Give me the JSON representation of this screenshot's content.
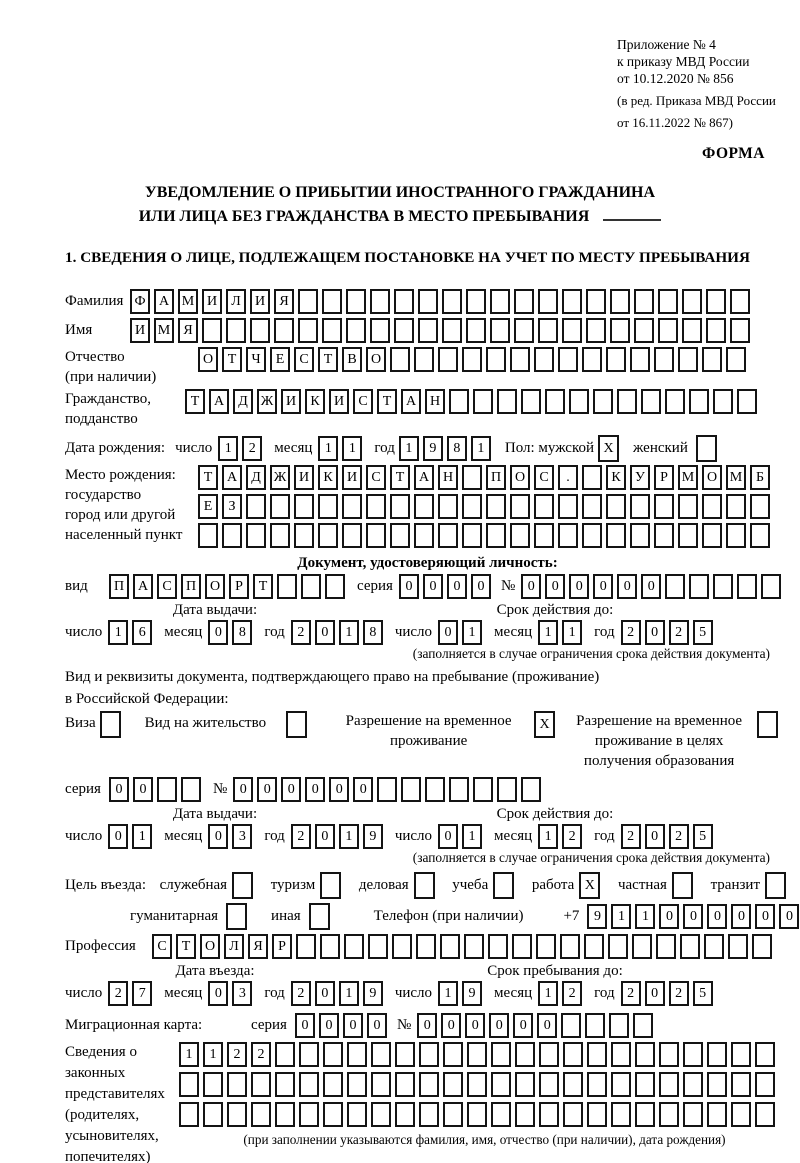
{
  "labels": {
    "day": "число",
    "month": "месяц",
    "year": "год",
    "series": "серия",
    "number": "№"
  },
  "annex": {
    "line1": "Приложение № 4",
    "line2": "к приказу МВД России",
    "line3": "от 10.12.2020 № 856",
    "line4": "(в ред. Приказа МВД России",
    "line5": "от 16.11.2022 № 867)",
    "forma": "ФОРМА"
  },
  "title": {
    "line1": "УВЕДОМЛЕНИЕ О ПРИБЫТИИ ИНОСТРАННОГО ГРАЖДАНИНА",
    "line2": "ИЛИ ЛИЦА БЕЗ ГРАЖДАНСТВА В МЕСТО ПРЕБЫВАНИЯ"
  },
  "section1": {
    "heading": "1. СВЕДЕНИЯ О ЛИЦЕ, ПОДЛЕЖАЩЕМ ПОСТАНОВКЕ НА УЧЕТ ПО МЕСТУ ПРЕБЫВАНИЯ",
    "surname": {
      "label": "Фамилия",
      "cells": {
        "v": "ФАМИЛИЯ",
        "n": 26
      }
    },
    "given_name": {
      "label": "Имя",
      "cells": {
        "v": "ИМЯ",
        "n": 26
      }
    },
    "patronymic": {
      "label1": "Отчество",
      "label2": "(при наличии)",
      "cells": {
        "v": "ОТЧЕСТВО",
        "n": 23
      }
    },
    "citizenship": {
      "label1": "Гражданство,",
      "label2": "подданство",
      "cells": {
        "v": "ТАДЖИКИСТАН",
        "n": 24
      }
    },
    "birth_date": {
      "label": "Дата рождения:",
      "day": {
        "v": "12",
        "n": 2
      },
      "month": {
        "v": "11",
        "n": 2
      },
      "year": {
        "v": "1981",
        "n": 4
      },
      "sex_male_label": "Пол: мужской",
      "sex_male": {
        "v": "X",
        "n": 1
      },
      "sex_female_label": "женский",
      "sex_female": {
        "v": "",
        "n": 1
      }
    },
    "birth_place": {
      "label1": "Место рождения:",
      "label2": "государство",
      "label3": "город или другой",
      "label4": "населенный пункт",
      "row1": {
        "v": "ТАДЖИКИСТАН ПОС. КУРМОМБ",
        "n": 24
      },
      "row2": {
        "v": "ЕЗ",
        "n": 24
      },
      "row3": {
        "v": "",
        "n": 24
      }
    },
    "identity_doc": {
      "heading": "Документ, удостоверяющий личность:",
      "kind_label": "вид",
      "kind": {
        "v": "ПАСПОРТ",
        "n": 10
      },
      "series": {
        "v": "0000",
        "n": 4
      },
      "number": {
        "v": "000000",
        "n": 11
      },
      "issue_heading": "Дата выдачи:",
      "issue_day": {
        "v": "16",
        "n": 2
      },
      "issue_month": {
        "v": "08",
        "n": 2
      },
      "issue_year": {
        "v": "2018",
        "n": 4
      },
      "valid_heading": "Срок действия до:",
      "valid_day": {
        "v": "01",
        "n": 2
      },
      "valid_month": {
        "v": "11",
        "n": 2
      },
      "valid_year": {
        "v": "2025",
        "n": 4
      },
      "note": "(заполняется в случае ограничения срока действия документа)"
    },
    "stay_doc": {
      "intro1": "Вид и реквизиты документа, подтверждающего право на пребывание (проживание)",
      "intro2": "в Российской Федерации:",
      "visa": {
        "label": "Виза",
        "box": {
          "v": "",
          "n": 1
        }
      },
      "residence_permit": {
        "label": "Вид на жительство",
        "box": {
          "v": "",
          "n": 1
        }
      },
      "temp_residence": {
        "label": "Разрешение на временное проживание",
        "box": {
          "v": "X",
          "n": 1
        }
      },
      "temp_residence_edu": {
        "label": "Разрешение на временное проживание в целях получения образования",
        "box": {
          "v": "",
          "n": 1
        }
      },
      "series": {
        "v": "00",
        "n": 4
      },
      "number": {
        "v": "000000",
        "n": 13
      },
      "issue_heading": "Дата выдачи:",
      "issue_day": {
        "v": "01",
        "n": 2
      },
      "issue_month": {
        "v": "03",
        "n": 2
      },
      "issue_year": {
        "v": "2019",
        "n": 4
      },
      "valid_heading": "Срок действия до:",
      "valid_day": {
        "v": "01",
        "n": 2
      },
      "valid_month": {
        "v": "12",
        "n": 2
      },
      "valid_year": {
        "v": "2025",
        "n": 4
      },
      "note": "(заполняется в случае ограничения срока действия документа)"
    },
    "purpose": {
      "label": "Цель въезда:",
      "official": {
        "label": "служебная",
        "box": {
          "v": "",
          "n": 1
        }
      },
      "tourism": {
        "label": "туризм",
        "box": {
          "v": "",
          "n": 1
        }
      },
      "business": {
        "label": "деловая",
        "box": {
          "v": "",
          "n": 1
        }
      },
      "study": {
        "label": "учеба",
        "box": {
          "v": "",
          "n": 1
        }
      },
      "work": {
        "label": "работа",
        "box": {
          "v": "X",
          "n": 1
        }
      },
      "private": {
        "label": "частная",
        "box": {
          "v": "",
          "n": 1
        }
      },
      "transit": {
        "label": "транзит",
        "box": {
          "v": "",
          "n": 1
        }
      },
      "humanitarian": {
        "label": "гуманитарная",
        "box": {
          "v": "",
          "n": 1
        }
      },
      "other": {
        "label": "иная",
        "box": {
          "v": "",
          "n": 1
        }
      },
      "phone_label": "Телефон (при наличии)",
      "phone_prefix": "+7",
      "phone": {
        "v": "911000000",
        "n": 10
      }
    },
    "profession": {
      "label": "Профессия",
      "cells": {
        "v": "СТОЛЯР",
        "n": 26
      }
    },
    "entry": {
      "left_heading": "Дата въезда:",
      "right_heading": "Срок пребывания до:",
      "entry_day": {
        "v": "27",
        "n": 2
      },
      "entry_month": {
        "v": "03",
        "n": 2
      },
      "entry_year": {
        "v": "2019",
        "n": 4
      },
      "until_day": {
        "v": "19",
        "n": 2
      },
      "until_month": {
        "v": "12",
        "n": 2
      },
      "until_year": {
        "v": "2025",
        "n": 4
      }
    },
    "migration_card": {
      "label": "Миграционная карта:",
      "series": {
        "v": "0000",
        "n": 4
      },
      "number": {
        "v": "000000",
        "n": 10
      }
    },
    "representatives": {
      "label1": "Сведения о",
      "label2": "законных",
      "label3": "представителях",
      "label4": "(родителях,",
      "label5": "усыновителях,",
      "label6": "попечителях)",
      "row1": {
        "v": "1122",
        "n": 25
      },
      "row2": {
        "v": "",
        "n": 25
      },
      "row3": {
        "v": "",
        "n": 25
      },
      "note": "(при заполнении указываются фамилия, имя, отчество (при наличии), дата рождения)"
    }
  }
}
